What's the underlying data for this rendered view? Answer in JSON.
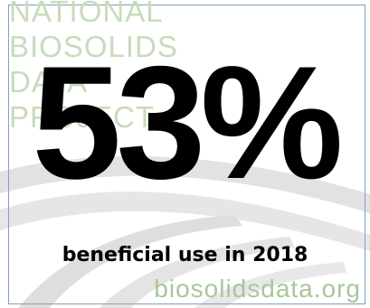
{
  "logo": {
    "lines": [
      "NATIONAL",
      "BIOSOLIDS",
      "DATA",
      "PROJECT"
    ]
  },
  "stat": {
    "value": "53%",
    "caption": "beneficial use in 2018"
  },
  "footer": {
    "website": "biosolidsdata.org"
  },
  "colors": {
    "logo_text": "#c7dcbc",
    "website_text": "#a9c79a",
    "swoosh": "#d9d9d9",
    "frame": "#7f9fc4",
    "stat_text": "#000000"
  }
}
